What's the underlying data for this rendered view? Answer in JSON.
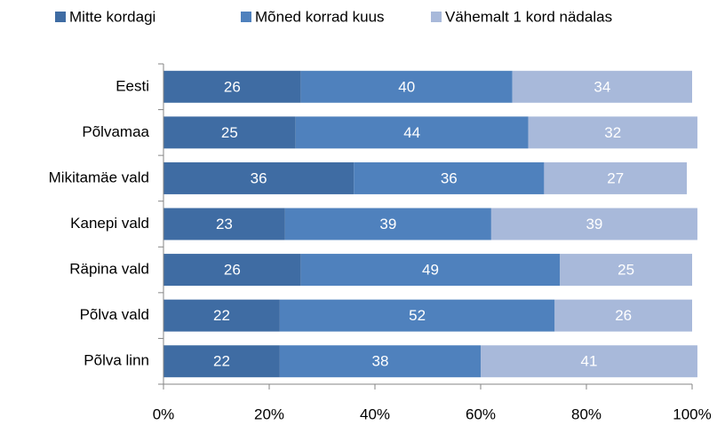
{
  "chart_data": {
    "type": "bar",
    "orientation": "horizontal",
    "stacked": true,
    "categories": [
      "Eesti",
      "Põlvamaa",
      "Mikitamäe vald",
      "Kanepi vald",
      "Räpina vald",
      "Põlva vald",
      "Põlva linn"
    ],
    "series": [
      {
        "name": "Mitte kordagi",
        "color": "#3f6ca3",
        "values": [
          26,
          25,
          36,
          23,
          26,
          22,
          22
        ]
      },
      {
        "name": "Mõned korrad kuus",
        "color": "#4f81bd",
        "values": [
          40,
          44,
          36,
          39,
          49,
          52,
          38
        ]
      },
      {
        "name": "Vähemalt 1 kord nädalas",
        "color": "#a8b9da",
        "values": [
          34,
          32,
          27,
          39,
          25,
          26,
          41
        ]
      }
    ],
    "xlim": [
      0,
      100
    ],
    "xticks": [
      {
        "value": 0,
        "label": "0%"
      },
      {
        "value": 20,
        "label": "20%"
      },
      {
        "value": 40,
        "label": "40%"
      },
      {
        "value": 60,
        "label": "60%"
      },
      {
        "value": 80,
        "label": "80%"
      },
      {
        "value": 100,
        "label": "100%"
      }
    ],
    "legend": "top"
  }
}
